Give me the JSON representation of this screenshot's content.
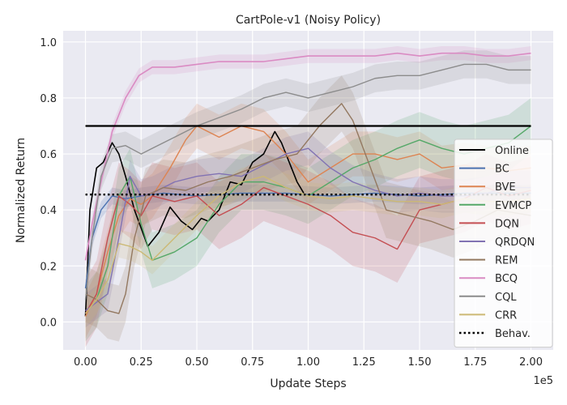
{
  "chart_data": {
    "type": "line",
    "title": "CartPole-v1 (Noisy Policy)",
    "xlabel": "Update Steps",
    "ylabel": "Normalized Return",
    "x_multiplier_label": "1e5",
    "xlim": [
      -0.1,
      2.1
    ],
    "ylim": [
      -0.1,
      1.04
    ],
    "xticks": [
      0.0,
      0.25,
      0.5,
      0.75,
      1.0,
      1.25,
      1.5,
      1.75,
      2.0
    ],
    "xtick_labels": [
      "0.00",
      "0.25",
      "0.50",
      "0.75",
      "1.00",
      "1.25",
      "1.50",
      "1.75",
      "2.00"
    ],
    "yticks": [
      0.0,
      0.2,
      0.4,
      0.6,
      0.8,
      1.0
    ],
    "ytick_labels": [
      "0.0",
      "0.2",
      "0.4",
      "0.6",
      "0.8",
      "1.0"
    ],
    "grid": true,
    "legend_position": "right",
    "series": [
      {
        "name": "Online",
        "color": "#000000",
        "style": "solid",
        "width": 1.6,
        "band": 0,
        "x": [
          0.0,
          0.02,
          0.05,
          0.08,
          0.12,
          0.15,
          0.18,
          0.22,
          0.28,
          0.33,
          0.38,
          0.43,
          0.48,
          0.52,
          0.55,
          0.6,
          0.65,
          0.7,
          0.75,
          0.8,
          0.85,
          0.88,
          0.92,
          0.95,
          0.98
        ],
        "y": [
          0.02,
          0.4,
          0.55,
          0.57,
          0.64,
          0.6,
          0.52,
          0.4,
          0.27,
          0.32,
          0.41,
          0.36,
          0.33,
          0.37,
          0.36,
          0.4,
          0.5,
          0.49,
          0.57,
          0.6,
          0.68,
          0.64,
          0.56,
          0.5,
          0.46
        ]
      },
      {
        "name": "BC",
        "color": "#4c72b0",
        "style": "solid",
        "width": 1.4,
        "band": 0.03,
        "x": [
          0.0,
          0.03,
          0.07,
          0.12,
          0.18,
          0.25,
          0.35,
          0.5,
          0.7,
          0.9,
          1.1,
          1.3,
          1.5,
          1.7,
          2.0
        ],
        "y": [
          0.12,
          0.3,
          0.4,
          0.45,
          0.44,
          0.45,
          0.46,
          0.45,
          0.46,
          0.46,
          0.45,
          0.46,
          0.45,
          0.46,
          0.46
        ]
      },
      {
        "name": "BVE",
        "color": "#dd8452",
        "style": "solid",
        "width": 1.4,
        "band": 0.08,
        "x": [
          0.0,
          0.05,
          0.1,
          0.15,
          0.2,
          0.25,
          0.3,
          0.38,
          0.45,
          0.5,
          0.6,
          0.7,
          0.8,
          0.9,
          1.0,
          1.1,
          1.2,
          1.3,
          1.4,
          1.5,
          1.6,
          1.7,
          1.8,
          1.9,
          2.0
        ],
        "y": [
          0.02,
          0.1,
          0.25,
          0.38,
          0.44,
          0.42,
          0.45,
          0.55,
          0.65,
          0.7,
          0.66,
          0.7,
          0.68,
          0.6,
          0.5,
          0.55,
          0.6,
          0.6,
          0.58,
          0.6,
          0.55,
          0.56,
          0.55,
          0.54,
          0.55
        ]
      },
      {
        "name": "EVMCP",
        "color": "#55a868",
        "style": "solid",
        "width": 1.4,
        "band": 0.1,
        "x": [
          0.0,
          0.05,
          0.1,
          0.15,
          0.2,
          0.25,
          0.3,
          0.4,
          0.5,
          0.6,
          0.7,
          0.8,
          0.9,
          1.0,
          1.1,
          1.2,
          1.3,
          1.4,
          1.5,
          1.6,
          1.7,
          1.8,
          1.9,
          2.0
        ],
        "y": [
          0.03,
          0.08,
          0.2,
          0.45,
          0.52,
          0.35,
          0.22,
          0.25,
          0.3,
          0.42,
          0.5,
          0.5,
          0.48,
          0.45,
          0.5,
          0.55,
          0.58,
          0.62,
          0.65,
          0.62,
          0.6,
          0.62,
          0.64,
          0.7
        ]
      },
      {
        "name": "DQN",
        "color": "#c44e52",
        "style": "solid",
        "width": 1.4,
        "band": 0.12,
        "x": [
          0.0,
          0.05,
          0.1,
          0.15,
          0.2,
          0.25,
          0.3,
          0.4,
          0.5,
          0.6,
          0.7,
          0.8,
          0.9,
          1.0,
          1.1,
          1.2,
          1.3,
          1.4,
          1.5,
          1.6,
          1.7,
          1.8,
          1.9,
          2.0
        ],
        "y": [
          0.03,
          0.1,
          0.3,
          0.45,
          0.42,
          0.38,
          0.45,
          0.43,
          0.45,
          0.38,
          0.42,
          0.48,
          0.45,
          0.42,
          0.38,
          0.32,
          0.3,
          0.26,
          0.4,
          0.42,
          0.44,
          0.48,
          0.45,
          0.47
        ]
      },
      {
        "name": "QRDQN",
        "color": "#8172b3",
        "style": "solid",
        "width": 1.4,
        "band": 0.06,
        "x": [
          0.0,
          0.05,
          0.1,
          0.15,
          0.2,
          0.25,
          0.3,
          0.4,
          0.5,
          0.6,
          0.7,
          0.8,
          0.9,
          1.0,
          1.1,
          1.2,
          1.3,
          1.4,
          1.5,
          1.6,
          1.7,
          1.8,
          1.9,
          2.0
        ],
        "y": [
          0.04,
          0.07,
          0.1,
          0.3,
          0.52,
          0.45,
          0.46,
          0.5,
          0.52,
          0.53,
          0.52,
          0.56,
          0.6,
          0.62,
          0.55,
          0.5,
          0.47,
          0.45,
          0.46,
          0.45,
          0.45,
          0.46,
          0.48,
          0.48
        ]
      },
      {
        "name": "REM",
        "color": "#937860",
        "style": "solid",
        "width": 1.4,
        "band": 0.1,
        "x": [
          0.0,
          0.05,
          0.1,
          0.15,
          0.18,
          0.22,
          0.27,
          0.35,
          0.45,
          0.55,
          0.65,
          0.75,
          0.85,
          0.95,
          1.05,
          1.15,
          1.2,
          1.28,
          1.35,
          1.45,
          1.55,
          1.65,
          1.75,
          1.85,
          2.0
        ],
        "y": [
          0.1,
          0.08,
          0.04,
          0.03,
          0.1,
          0.3,
          0.45,
          0.48,
          0.47,
          0.5,
          0.52,
          0.55,
          0.58,
          0.6,
          0.7,
          0.78,
          0.72,
          0.55,
          0.4,
          0.38,
          0.36,
          0.33,
          0.36,
          0.4,
          0.38
        ]
      },
      {
        "name": "BCQ",
        "color": "#da8bc3",
        "style": "solid",
        "width": 1.6,
        "band": 0.025,
        "x": [
          0.0,
          0.03,
          0.07,
          0.12,
          0.18,
          0.24,
          0.3,
          0.4,
          0.5,
          0.6,
          0.7,
          0.8,
          0.9,
          1.0,
          1.1,
          1.2,
          1.3,
          1.4,
          1.5,
          1.6,
          1.7,
          1.8,
          1.9,
          2.0
        ],
        "y": [
          0.22,
          0.35,
          0.5,
          0.68,
          0.8,
          0.88,
          0.91,
          0.91,
          0.92,
          0.93,
          0.93,
          0.93,
          0.94,
          0.95,
          0.95,
          0.95,
          0.95,
          0.96,
          0.95,
          0.96,
          0.96,
          0.95,
          0.95,
          0.96
        ]
      },
      {
        "name": "CQL",
        "color": "#8c8c8c",
        "style": "solid",
        "width": 1.4,
        "band": 0.05,
        "x": [
          0.0,
          0.03,
          0.07,
          0.12,
          0.18,
          0.25,
          0.3,
          0.4,
          0.5,
          0.6,
          0.7,
          0.8,
          0.9,
          1.0,
          1.1,
          1.2,
          1.3,
          1.4,
          1.5,
          1.6,
          1.7,
          1.8,
          1.9,
          2.0
        ],
        "y": [
          0.08,
          0.3,
          0.52,
          0.62,
          0.63,
          0.6,
          0.62,
          0.66,
          0.7,
          0.73,
          0.76,
          0.8,
          0.82,
          0.8,
          0.82,
          0.84,
          0.87,
          0.88,
          0.88,
          0.9,
          0.92,
          0.92,
          0.9,
          0.9
        ]
      },
      {
        "name": "CRR",
        "color": "#ccb974",
        "style": "solid",
        "width": 1.4,
        "band": 0.05,
        "x": [
          0.0,
          0.05,
          0.1,
          0.15,
          0.2,
          0.25,
          0.3,
          0.4,
          0.5,
          0.6,
          0.7,
          0.8,
          0.9,
          1.0,
          1.1,
          1.2,
          1.3,
          1.4,
          1.5,
          1.6,
          1.7,
          1.8,
          1.9,
          2.0
        ],
        "y": [
          0.03,
          0.08,
          0.15,
          0.28,
          0.27,
          0.25,
          0.22,
          0.3,
          0.38,
          0.45,
          0.5,
          0.52,
          0.48,
          0.45,
          0.44,
          0.45,
          0.44,
          0.43,
          0.43,
          0.42,
          0.44,
          0.43,
          0.43,
          0.44
        ]
      },
      {
        "name": "Online",
        "legend": false,
        "color": "#000000",
        "style": "solid",
        "width": 2.2,
        "band": 0,
        "x": [
          0.0,
          2.0
        ],
        "y": [
          0.7,
          0.7
        ]
      },
      {
        "name": "Behav.",
        "color": "#000000",
        "style": "dotted",
        "width": 2.4,
        "band": 0,
        "x": [
          0.0,
          2.0
        ],
        "y": [
          0.455,
          0.455
        ]
      }
    ]
  }
}
